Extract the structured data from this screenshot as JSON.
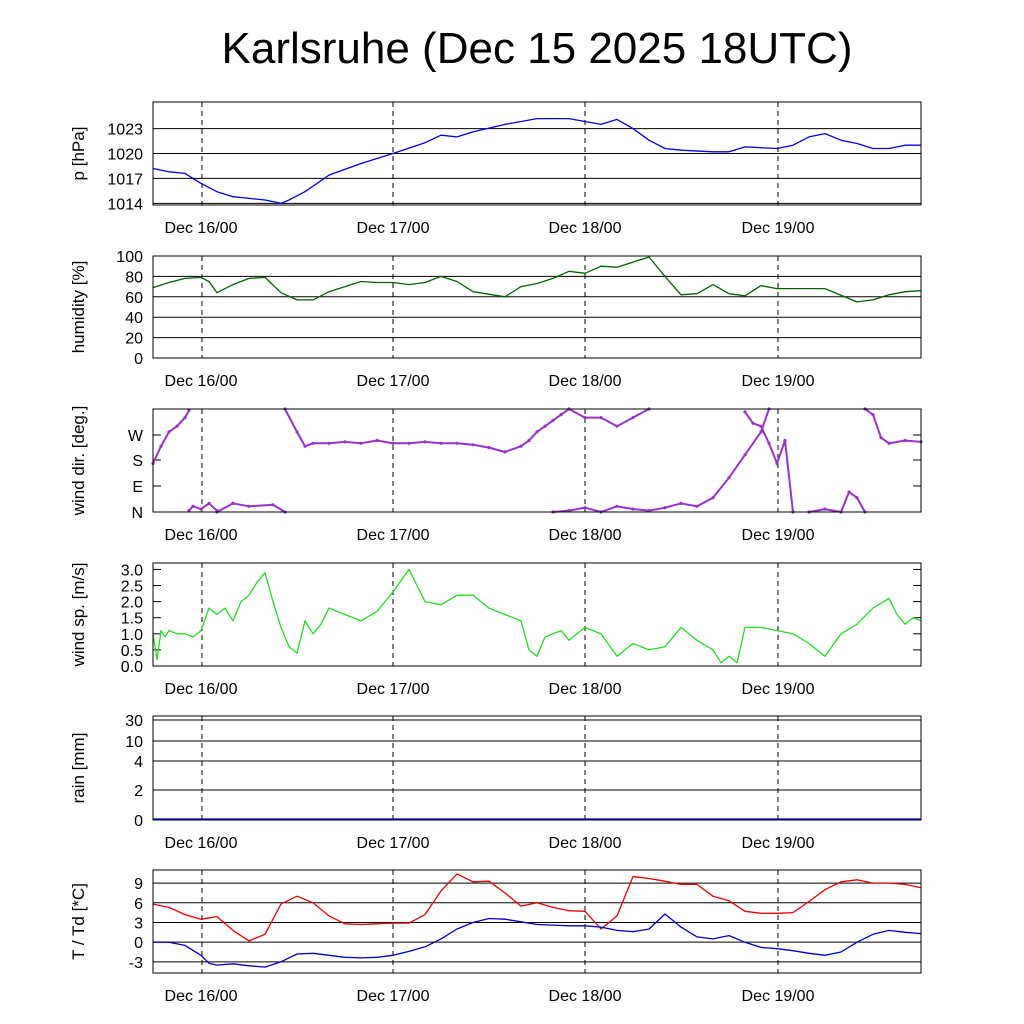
{
  "title": "Karlsruhe (Dec 15 2025 18UTC)",
  "x_tick_labels": [
    "Dec 16/00",
    "Dec 17/00",
    "Dec 18/00",
    "Dec 19/00"
  ],
  "colors": {
    "pressure": "#0000ee",
    "humidity": "#006400",
    "wind_dir": "#9932cc",
    "wind_speed": "#22dd22",
    "rain": "#0000ee",
    "temperature": "#ee0000",
    "dewpoint": "#0000cc"
  },
  "chart_data": [
    {
      "type": "line",
      "ylabel": "p [hPa]",
      "y_ticks": [
        1014,
        1017,
        1020,
        1023
      ],
      "ylim": [
        1013.8,
        1026.2
      ],
      "x_unit": "hours since Dec 15 18UTC",
      "xlim": [
        0,
        96
      ],
      "series": [
        {
          "x": [
            0,
            2,
            4,
            6,
            8,
            10,
            12,
            14,
            16,
            17,
            19,
            22,
            26,
            30,
            34,
            36,
            38,
            40,
            44,
            48,
            52,
            56,
            58,
            60,
            62,
            64,
            66,
            70,
            72,
            74,
            76,
            78,
            80,
            82,
            84,
            86,
            88,
            90,
            92,
            94,
            96
          ],
          "values": [
            1018.2,
            1017.8,
            1017.6,
            1016.4,
            1015.4,
            1014.8,
            1014.6,
            1014.4,
            1014.0,
            1014.4,
            1015.4,
            1017.4,
            1018.8,
            1020.0,
            1021.3,
            1022.2,
            1022.0,
            1022.6,
            1023.5,
            1024.2,
            1024.2,
            1023.5,
            1024.1,
            1023.0,
            1021.6,
            1020.6,
            1020.4,
            1020.2,
            1020.2,
            1020.8,
            1020.7,
            1020.6,
            1021.0,
            1022.0,
            1022.4,
            1021.6,
            1021.2,
            1020.6,
            1020.6,
            1021.0,
            1021.0
          ]
        }
      ]
    },
    {
      "type": "line",
      "ylabel": "humidity [%]",
      "y_ticks": [
        0,
        20,
        40,
        60,
        80,
        100
      ],
      "ylim": [
        0,
        100
      ],
      "xlim": [
        0,
        96
      ],
      "series": [
        {
          "x": [
            0,
            2,
            4,
            6,
            7,
            8,
            10,
            12,
            14,
            16,
            18,
            20,
            22,
            26,
            28,
            30,
            32,
            34,
            36,
            38,
            40,
            44,
            46,
            48,
            50,
            52,
            54,
            56,
            58,
            62,
            64,
            66,
            68,
            70,
            72,
            74,
            76,
            78,
            80,
            84,
            88,
            90,
            92,
            94,
            96
          ],
          "values": [
            69,
            74,
            78,
            79,
            75,
            64,
            72,
            78,
            79,
            64,
            57,
            57,
            65,
            75,
            74,
            74,
            72,
            74,
            80,
            75,
            65,
            60,
            70,
            73,
            78,
            85,
            83,
            90,
            89,
            99,
            80,
            62,
            63,
            72,
            63,
            61,
            71,
            68,
            68,
            68,
            55,
            57,
            62,
            65,
            66
          ]
        }
      ]
    },
    {
      "type": "scatter",
      "ylabel": "wind dir. [deg.]",
      "y_ticks": [
        "N",
        "E",
        "S",
        "W"
      ],
      "ylim": [
        0,
        360
      ],
      "xlim": [
        0,
        96
      ],
      "segments": [
        {
          "x": [
            0,
            1,
            2,
            3,
            4,
            4.5
          ],
          "values": [
            170,
            230,
            280,
            300,
            330,
            355
          ]
        },
        {
          "x": [
            4.5,
            5,
            6,
            7,
            8
          ],
          "values": [
            5,
            20,
            10,
            30,
            5
          ]
        },
        {
          "x": [
            8,
            10,
            12,
            15,
            16.5
          ],
          "values": [
            0,
            30,
            20,
            25,
            0
          ]
        },
        {
          "x": [
            16.5,
            18,
            19,
            20,
            22,
            24,
            26,
            28,
            30,
            32,
            34,
            36,
            38,
            40,
            42,
            44,
            46,
            47,
            48,
            49,
            50,
            51,
            52,
            54,
            56,
            58,
            60,
            62
          ],
          "values": [
            360,
            280,
            230,
            240,
            240,
            245,
            240,
            250,
            240,
            240,
            245,
            240,
            240,
            235,
            225,
            210,
            230,
            250,
            280,
            300,
            320,
            340,
            360,
            330,
            330,
            300,
            330,
            360
          ]
        },
        {
          "x": [
            50,
            52,
            54,
            56,
            58,
            60,
            62,
            64,
            66,
            68,
            70,
            72,
            74,
            76,
            77
          ],
          "values": [
            0,
            5,
            15,
            0,
            20,
            10,
            5,
            15,
            30,
            20,
            50,
            120,
            200,
            280,
            360
          ]
        },
        {
          "x": [
            74,
            75,
            76,
            77,
            78,
            79,
            80
          ],
          "values": [
            350,
            310,
            300,
            240,
            170,
            250,
            0
          ]
        },
        {
          "x": [
            82,
            84,
            86,
            87,
            88,
            89
          ],
          "values": [
            0,
            10,
            0,
            70,
            50,
            0
          ]
        },
        {
          "x": [
            89,
            90,
            91,
            92,
            94,
            96
          ],
          "values": [
            360,
            340,
            260,
            240,
            250,
            245
          ]
        }
      ]
    },
    {
      "type": "line",
      "ylabel": "wind sp. [m/s]",
      "y_ticks": [
        0.0,
        0.5,
        1.0,
        1.5,
        2.0,
        2.5,
        3.0
      ],
      "ylim": [
        0,
        3.2
      ],
      "xlim": [
        0,
        96
      ],
      "series": [
        {
          "x": [
            0,
            0.5,
            1,
            1.5,
            2,
            3,
            4,
            5,
            6,
            7,
            8,
            9,
            10,
            11,
            12,
            13,
            14,
            15,
            16,
            17,
            18,
            19,
            20,
            21,
            22,
            24,
            26,
            28,
            30,
            32,
            34,
            36,
            38,
            40,
            42,
            44,
            46,
            47,
            48,
            49,
            50,
            51,
            52,
            54,
            56,
            58,
            60,
            62,
            64,
            66,
            68,
            70,
            71,
            72,
            73,
            74,
            76,
            78,
            80,
            82,
            84,
            86,
            88,
            90,
            92,
            93,
            94,
            95,
            96
          ],
          "values": [
            1.0,
            0.2,
            1.1,
            0.9,
            1.1,
            1.0,
            1.0,
            0.9,
            1.1,
            1.8,
            1.6,
            1.8,
            1.4,
            2.0,
            2.2,
            2.6,
            2.9,
            2.0,
            1.2,
            0.6,
            0.4,
            1.4,
            1.0,
            1.3,
            1.8,
            1.6,
            1.4,
            1.7,
            2.3,
            3.0,
            2.0,
            1.9,
            2.2,
            2.2,
            1.8,
            1.6,
            1.4,
            0.5,
            0.3,
            0.9,
            1.0,
            1.1,
            0.8,
            1.2,
            1.0,
            0.3,
            0.7,
            0.5,
            0.6,
            1.2,
            0.8,
            0.5,
            0.1,
            0.3,
            0.1,
            1.2,
            1.2,
            1.1,
            1.0,
            0.7,
            0.3,
            1.0,
            1.3,
            1.8,
            2.1,
            1.6,
            1.3,
            1.5,
            1.4
          ]
        }
      ]
    },
    {
      "type": "line",
      "ylabel": "rain [mm]",
      "y_ticks": [
        "0",
        "2",
        "4",
        "10",
        "30"
      ],
      "xlim": [
        0,
        96
      ],
      "series": [
        {
          "x": [
            0,
            96
          ],
          "values": [
            0,
            0
          ]
        }
      ]
    },
    {
      "type": "line",
      "ylabel": "T / Td [*C]",
      "y_ticks": [
        -3,
        0,
        3,
        6,
        9
      ],
      "ylim": [
        -4.7,
        11
      ],
      "xlim": [
        0,
        96
      ],
      "series": [
        {
          "name": "T",
          "x": [
            0,
            2,
            4,
            6,
            8,
            10,
            12,
            14,
            16,
            18,
            20,
            22,
            24,
            26,
            28,
            30,
            32,
            34,
            36,
            38,
            40,
            42,
            44,
            46,
            48,
            50,
            52,
            54,
            56,
            58,
            60,
            62,
            64,
            66,
            68,
            70,
            72,
            74,
            76,
            78,
            80,
            82,
            84,
            86,
            88,
            90,
            92,
            94,
            96
          ],
          "values": [
            5.8,
            5.3,
            4.2,
            3.5,
            3.9,
            1.8,
            0.2,
            1.2,
            5.8,
            7.0,
            6.0,
            4.0,
            2.8,
            2.7,
            2.8,
            2.9,
            2.9,
            4.2,
            7.8,
            10.4,
            9.2,
            9.3,
            7.5,
            5.5,
            6.0,
            5.3,
            4.8,
            4.7,
            2.0,
            4.0,
            10.0,
            9.7,
            9.3,
            8.8,
            8.8,
            7.0,
            6.3,
            4.7,
            4.4,
            4.4,
            4.5,
            6.2,
            8.0,
            9.2,
            9.5,
            9.0,
            9.0,
            8.8,
            8.3
          ]
        },
        {
          "name": "Td",
          "x": [
            0,
            2,
            4,
            6,
            7,
            8,
            10,
            12,
            14,
            16,
            18,
            20,
            22,
            24,
            26,
            28,
            30,
            32,
            34,
            36,
            38,
            40,
            42,
            44,
            46,
            48,
            50,
            52,
            54,
            56,
            58,
            60,
            62,
            64,
            66,
            68,
            70,
            72,
            74,
            76,
            78,
            80,
            82,
            84,
            86,
            88,
            90,
            92,
            94,
            96
          ],
          "values": [
            0.0,
            0.0,
            -0.5,
            -2.0,
            -3.2,
            -3.5,
            -3.3,
            -3.6,
            -3.8,
            -3.0,
            -1.8,
            -1.7,
            -2.0,
            -2.3,
            -2.4,
            -2.3,
            -2.0,
            -1.4,
            -0.7,
            0.5,
            2.0,
            3.0,
            3.6,
            3.5,
            3.1,
            2.7,
            2.6,
            2.5,
            2.5,
            2.3,
            1.8,
            1.6,
            2.0,
            4.3,
            2.3,
            0.8,
            0.5,
            1.0,
            0.0,
            -0.8,
            -1.0,
            -1.3,
            -1.7,
            -2.0,
            -1.5,
            0.0,
            1.2,
            1.8,
            1.5,
            1.3
          ]
        }
      ]
    }
  ]
}
